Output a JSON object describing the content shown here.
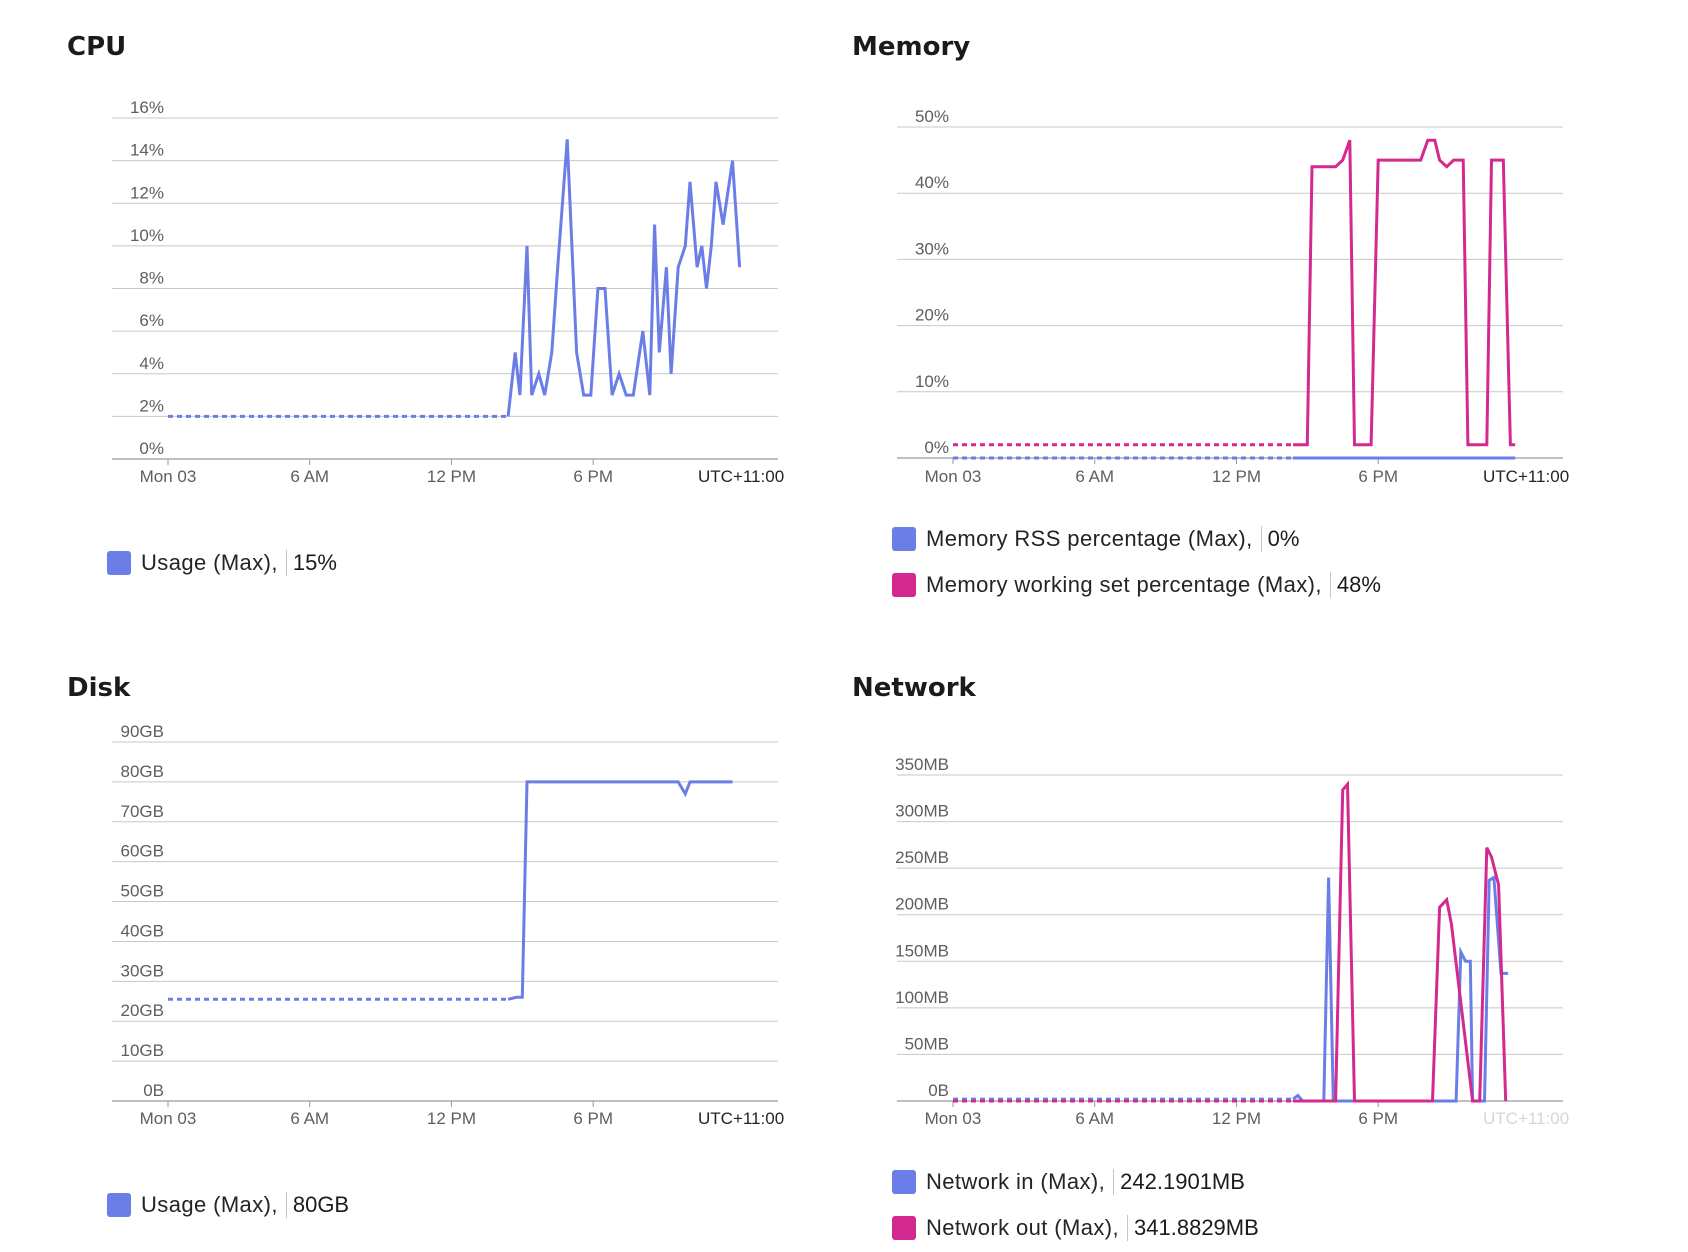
{
  "timezone": "UTC+11:00",
  "colors": {
    "blue": "#6b7ee8",
    "magenta": "#d4298f",
    "grid": "#c8c8c8"
  },
  "panels": {
    "cpu": {
      "title": "CPU",
      "legend": [
        {
          "name": "Usage (Max),",
          "value": "15%",
          "color": "#6b7ee8"
        }
      ]
    },
    "memory": {
      "title": "Memory",
      "legend": [
        {
          "name": "Memory RSS percentage (Max),",
          "value": "0%",
          "color": "#6b7ee8"
        },
        {
          "name": "Memory working set percentage (Max),",
          "value": "48%",
          "color": "#d4298f"
        }
      ]
    },
    "disk": {
      "title": "Disk",
      "legend": [
        {
          "name": "Usage (Max),",
          "value": "80GB",
          "color": "#6b7ee8"
        }
      ]
    },
    "network": {
      "title": "Network",
      "legend": [
        {
          "name": "Network in (Max),",
          "value": "242.1901MB",
          "color": "#6b7ee8"
        },
        {
          "name": "Network out (Max),",
          "value": "341.8829MB",
          "color": "#d4298f"
        }
      ]
    }
  },
  "chart_data": [
    {
      "id": "cpu",
      "type": "line",
      "title": "CPU",
      "x_unit": "hours since Mon 03 00:00 (local time)",
      "x_ticks": [
        {
          "x": 0,
          "label": "Mon 03"
        },
        {
          "x": 6,
          "label": "6 AM"
        },
        {
          "x": 12,
          "label": "12 PM"
        },
        {
          "x": 18,
          "label": "6 PM"
        }
      ],
      "x_range": [
        0,
        24
      ],
      "y_ticks": [
        "0%",
        "2%",
        "4%",
        "6%",
        "8%",
        "10%",
        "12%",
        "14%",
        "16%"
      ],
      "y_tick_values": [
        0,
        2,
        4,
        6,
        8,
        10,
        12,
        14,
        16
      ],
      "ylim": [
        0,
        16
      ],
      "grid": true,
      "series": [
        {
          "name": "Usage (Max)",
          "color": "#6b7ee8",
          "dashed": {
            "x": [
              0,
              14.4
            ],
            "y": [
              2,
              2
            ]
          },
          "solid": {
            "x": [
              14.4,
              14.7,
              14.9,
              15.2,
              15.4,
              15.7,
              15.95,
              16.25,
              16.5,
              16.9,
              17.3,
              17.6,
              17.9,
              18.2,
              18.5,
              18.8,
              19.1,
              19.4,
              19.7,
              20.1,
              20.4,
              20.6,
              20.8,
              21.1,
              21.3,
              21.6,
              21.9,
              22.1,
              22.4,
              22.6,
              22.8,
              23.0,
              23.2,
              23.5,
              23.9
            ],
            "y": [
              2,
              5,
              3,
              10,
              3,
              4,
              3,
              5,
              9,
              15,
              5,
              3,
              3,
              8,
              8,
              3,
              4,
              3,
              3,
              6,
              3,
              11,
              5,
              9,
              4,
              9,
              10,
              13,
              9,
              10,
              8,
              10,
              13,
              11,
              14
            ]
          },
          "tail": {
            "x": [
              23.9,
              24.2
            ],
            "y": [
              14,
              9
            ]
          }
        }
      ]
    },
    {
      "id": "memory",
      "type": "line",
      "title": "Memory",
      "x_unit": "hours since Mon 03 00:00 (local time)",
      "x_ticks": [
        {
          "x": 0,
          "label": "Mon 03"
        },
        {
          "x": 6,
          "label": "6 AM"
        },
        {
          "x": 12,
          "label": "12 PM"
        },
        {
          "x": 18,
          "label": "6 PM"
        }
      ],
      "x_range": [
        0,
        24
      ],
      "y_ticks": [
        "0%",
        "10%",
        "20%",
        "30%",
        "40%",
        "50%"
      ],
      "y_tick_values": [
        0,
        10,
        20,
        30,
        40,
        50
      ],
      "ylim": [
        0,
        50
      ],
      "grid": true,
      "series": [
        {
          "name": "Memory RSS percentage (Max)",
          "color": "#6b7ee8",
          "dashed": {
            "x": [
              0,
              14.4
            ],
            "y": [
              0,
              0
            ]
          },
          "solid": {
            "x": [
              14.4,
              23.8
            ],
            "y": [
              0,
              0
            ]
          }
        },
        {
          "name": "Memory working set percentage (Max)",
          "color": "#d4298f",
          "dashed": {
            "x": [
              0,
              14.4
            ],
            "y": [
              2,
              2
            ]
          },
          "solid": {
            "x": [
              14.4,
              15.0,
              15.2,
              16.2,
              16.5,
              16.8,
              17.0,
              17.2,
              17.7,
              18.0,
              18.4,
              19.7,
              19.8,
              20.1,
              20.4,
              20.6,
              20.9,
              21.2,
              21.6,
              21.8,
              22.1,
              22.6,
              22.8,
              23.3,
              23.6,
              23.8
            ],
            "y": [
              2,
              2,
              44,
              44,
              45,
              48,
              2,
              2,
              2,
              45,
              45,
              45,
              45,
              48,
              48,
              45,
              44,
              45,
              45,
              2,
              2,
              2,
              45,
              45,
              2,
              2
            ]
          }
        }
      ]
    },
    {
      "id": "disk",
      "type": "line",
      "title": "Disk",
      "x_unit": "hours since Mon 03 00:00 (local time)",
      "x_ticks": [
        {
          "x": 0,
          "label": "Mon 03"
        },
        {
          "x": 6,
          "label": "6 AM"
        },
        {
          "x": 12,
          "label": "12 PM"
        },
        {
          "x": 18,
          "label": "6 PM"
        }
      ],
      "x_range": [
        0,
        24
      ],
      "y_ticks": [
        "0B",
        "10GB",
        "20GB",
        "30GB",
        "40GB",
        "50GB",
        "60GB",
        "70GB",
        "80GB",
        "90GB"
      ],
      "y_tick_values": [
        0,
        10,
        20,
        30,
        40,
        50,
        60,
        70,
        80,
        90
      ],
      "ylim": [
        0,
        100
      ],
      "grid": true,
      "series": [
        {
          "name": "Usage (Max)",
          "color": "#6b7ee8",
          "dashed": {
            "x": [
              0,
              14.4
            ],
            "y": [
              25.5,
              25.5
            ]
          },
          "solid": {
            "x": [
              14.4,
              14.75,
              15.0,
              15.2,
              17.8,
              18.0,
              21.6,
              21.9,
              22.1,
              22.2,
              23.9
            ],
            "y": [
              25.5,
              26,
              26,
              80,
              80,
              80,
              80,
              77,
              80,
              80,
              80
            ]
          }
        }
      ]
    },
    {
      "id": "network",
      "type": "line",
      "title": "Network",
      "x_unit": "hours since Mon 03 00:00 (local time)",
      "x_ticks": [
        {
          "x": 0,
          "label": "Mon 03"
        },
        {
          "x": 6,
          "label": "6 AM"
        },
        {
          "x": 12,
          "label": "12 PM"
        },
        {
          "x": 18,
          "label": "6 PM"
        }
      ],
      "x_range": [
        0,
        24
      ],
      "y_ticks": [
        "0B",
        "50MB",
        "100MB",
        "150MB",
        "200MB",
        "250MB",
        "300MB",
        "350MB"
      ],
      "y_tick_values": [
        0,
        50,
        100,
        150,
        200,
        250,
        300,
        350
      ],
      "ylim": [
        0,
        350
      ],
      "grid": true,
      "tz_faded": true,
      "series": [
        {
          "name": "Network in (Max)",
          "color": "#6b7ee8",
          "dashed": {
            "x": [
              0,
              14.4
            ],
            "y": [
              2,
              2
            ]
          },
          "solid": {
            "x": [
              14.4,
              14.6,
              14.8,
              15.7,
              15.9,
              16.1,
              20.9,
              21.3,
              21.5,
              21.7,
              21.9,
              22.0,
              22.5,
              22.7,
              22.9,
              23.2,
              23.5
            ],
            "y": [
              2,
              6,
              0,
              0,
              240,
              0,
              0,
              0,
              160,
              150,
              150,
              0,
              0,
              237,
              240,
              137,
              137
            ]
          }
        },
        {
          "name": "Network out (Max)",
          "color": "#d4298f",
          "dashed": {
            "x": [
              0,
              14.4
            ],
            "y": [
              0,
              0
            ]
          },
          "solid": {
            "x": [
              14.4,
              16.2,
              16.5,
              16.7,
              17.0,
              17.2,
              20.3,
              20.6,
              20.9,
              21.1,
              22.0,
              22.3,
              22.6,
              22.8,
              23.1,
              23.4
            ],
            "y": [
              0,
              0,
              334,
              340,
              0,
              0,
              0,
              208,
              216,
              190,
              0,
              0,
              272,
              262,
              232,
              0
            ]
          }
        }
      ]
    }
  ]
}
